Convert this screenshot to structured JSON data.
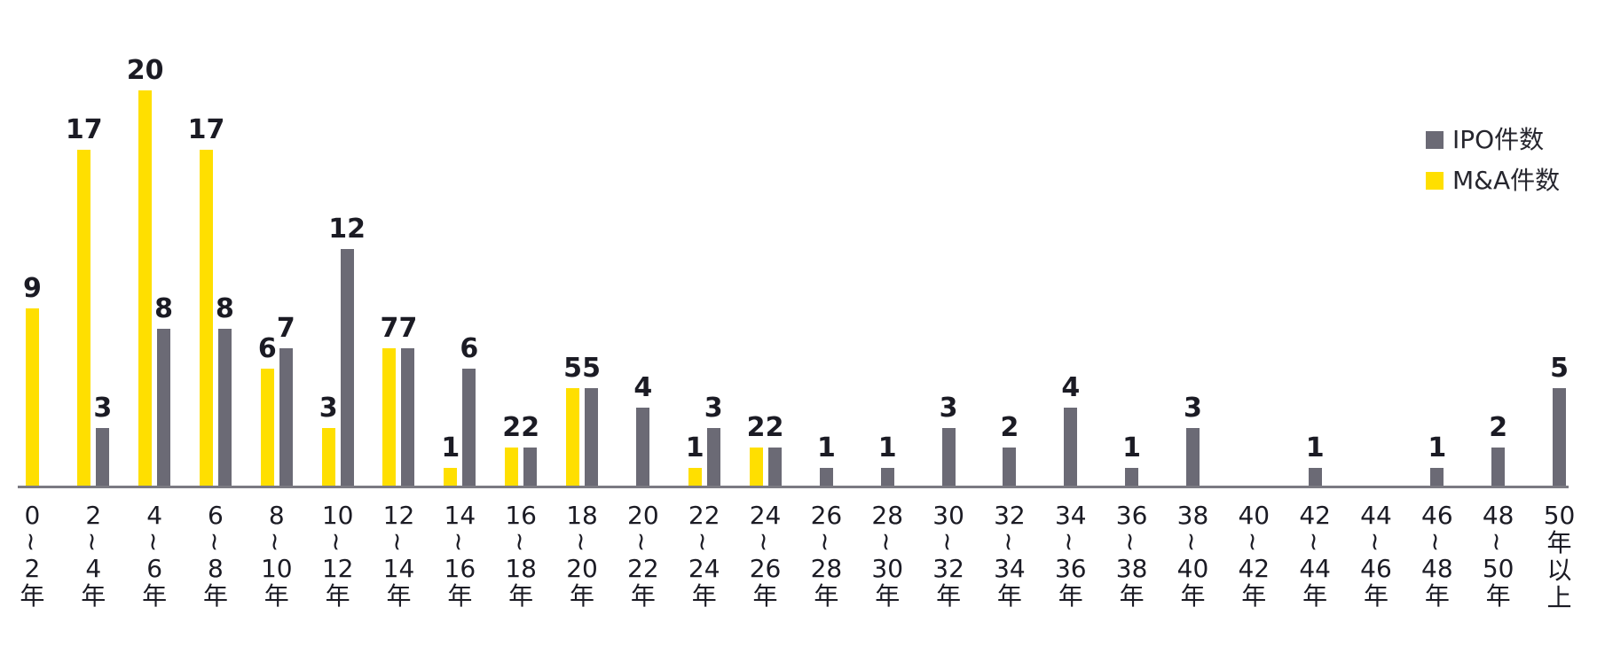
{
  "chart_data": {
    "type": "bar",
    "title": "",
    "xlabel": "",
    "ylabel": "",
    "ylim": [
      0,
      20
    ],
    "grid": false,
    "legend_position": "top-right",
    "value_labels": true,
    "categories": [
      {
        "label": "0〜2年",
        "lines": [
          "0",
          "~",
          "2",
          "年"
        ]
      },
      {
        "label": "2〜4年",
        "lines": [
          "2",
          "~",
          "4",
          "年"
        ]
      },
      {
        "label": "4〜6年",
        "lines": [
          "4",
          "~",
          "6",
          "年"
        ]
      },
      {
        "label": "6〜8年",
        "lines": [
          "6",
          "~",
          "8",
          "年"
        ]
      },
      {
        "label": "8〜10年",
        "lines": [
          "8",
          "~",
          "10",
          "年"
        ]
      },
      {
        "label": "10〜12年",
        "lines": [
          "10",
          "~",
          "12",
          "年"
        ]
      },
      {
        "label": "12〜14年",
        "lines": [
          "12",
          "~",
          "14",
          "年"
        ]
      },
      {
        "label": "14〜16年",
        "lines": [
          "14",
          "~",
          "16",
          "年"
        ]
      },
      {
        "label": "16〜18年",
        "lines": [
          "16",
          "~",
          "18",
          "年"
        ]
      },
      {
        "label": "18〜20年",
        "lines": [
          "18",
          "~",
          "20",
          "年"
        ]
      },
      {
        "label": "20〜22年",
        "lines": [
          "20",
          "~",
          "22",
          "年"
        ]
      },
      {
        "label": "22〜24年",
        "lines": [
          "22",
          "~",
          "24",
          "年"
        ]
      },
      {
        "label": "24〜26年",
        "lines": [
          "24",
          "~",
          "26",
          "年"
        ]
      },
      {
        "label": "26〜28年",
        "lines": [
          "26",
          "~",
          "28",
          "年"
        ]
      },
      {
        "label": "28〜30年",
        "lines": [
          "28",
          "~",
          "30",
          "年"
        ]
      },
      {
        "label": "30〜32年",
        "lines": [
          "30",
          "~",
          "32",
          "年"
        ]
      },
      {
        "label": "32〜34年",
        "lines": [
          "32",
          "~",
          "34",
          "年"
        ]
      },
      {
        "label": "34〜36年",
        "lines": [
          "34",
          "~",
          "36",
          "年"
        ]
      },
      {
        "label": "36〜38年",
        "lines": [
          "36",
          "~",
          "38",
          "年"
        ]
      },
      {
        "label": "38〜40年",
        "lines": [
          "38",
          "~",
          "40",
          "年"
        ]
      },
      {
        "label": "40〜42年",
        "lines": [
          "40",
          "~",
          "42",
          "年"
        ]
      },
      {
        "label": "42〜44年",
        "lines": [
          "42",
          "~",
          "44",
          "年"
        ]
      },
      {
        "label": "44〜46年",
        "lines": [
          "44",
          "~",
          "46",
          "年"
        ]
      },
      {
        "label": "46〜48年",
        "lines": [
          "46",
          "~",
          "48",
          "年"
        ]
      },
      {
        "label": "48〜50年",
        "lines": [
          "48",
          "~",
          "50",
          "年"
        ]
      },
      {
        "label": "50年以上",
        "lines": [
          "50",
          "年",
          "以",
          "上"
        ]
      }
    ],
    "series": [
      {
        "name": "M&A件数",
        "color": "#FFDF00",
        "values": [
          9,
          17,
          20,
          17,
          6,
          3,
          7,
          1,
          2,
          5,
          0,
          1,
          2,
          0,
          0,
          0,
          0,
          0,
          0,
          0,
          0,
          0,
          0,
          0,
          0,
          0
        ]
      },
      {
        "name": "IPO件数",
        "color": "#6B6A75",
        "values": [
          0,
          3,
          8,
          8,
          7,
          12,
          7,
          6,
          2,
          5,
          4,
          3,
          2,
          1,
          1,
          3,
          2,
          4,
          1,
          3,
          0,
          1,
          0,
          1,
          2,
          5
        ]
      }
    ]
  },
  "legend": {
    "items": [
      {
        "label": "IPO件数",
        "color": "#6B6A75"
      },
      {
        "label": "M&A件数",
        "color": "#FFDF00"
      }
    ]
  },
  "colors": {
    "ma_yellow": "#FFDF00",
    "ipo_gray": "#6B6A75",
    "text": "#1b1b24",
    "axis_line": "#7b7a82"
  }
}
